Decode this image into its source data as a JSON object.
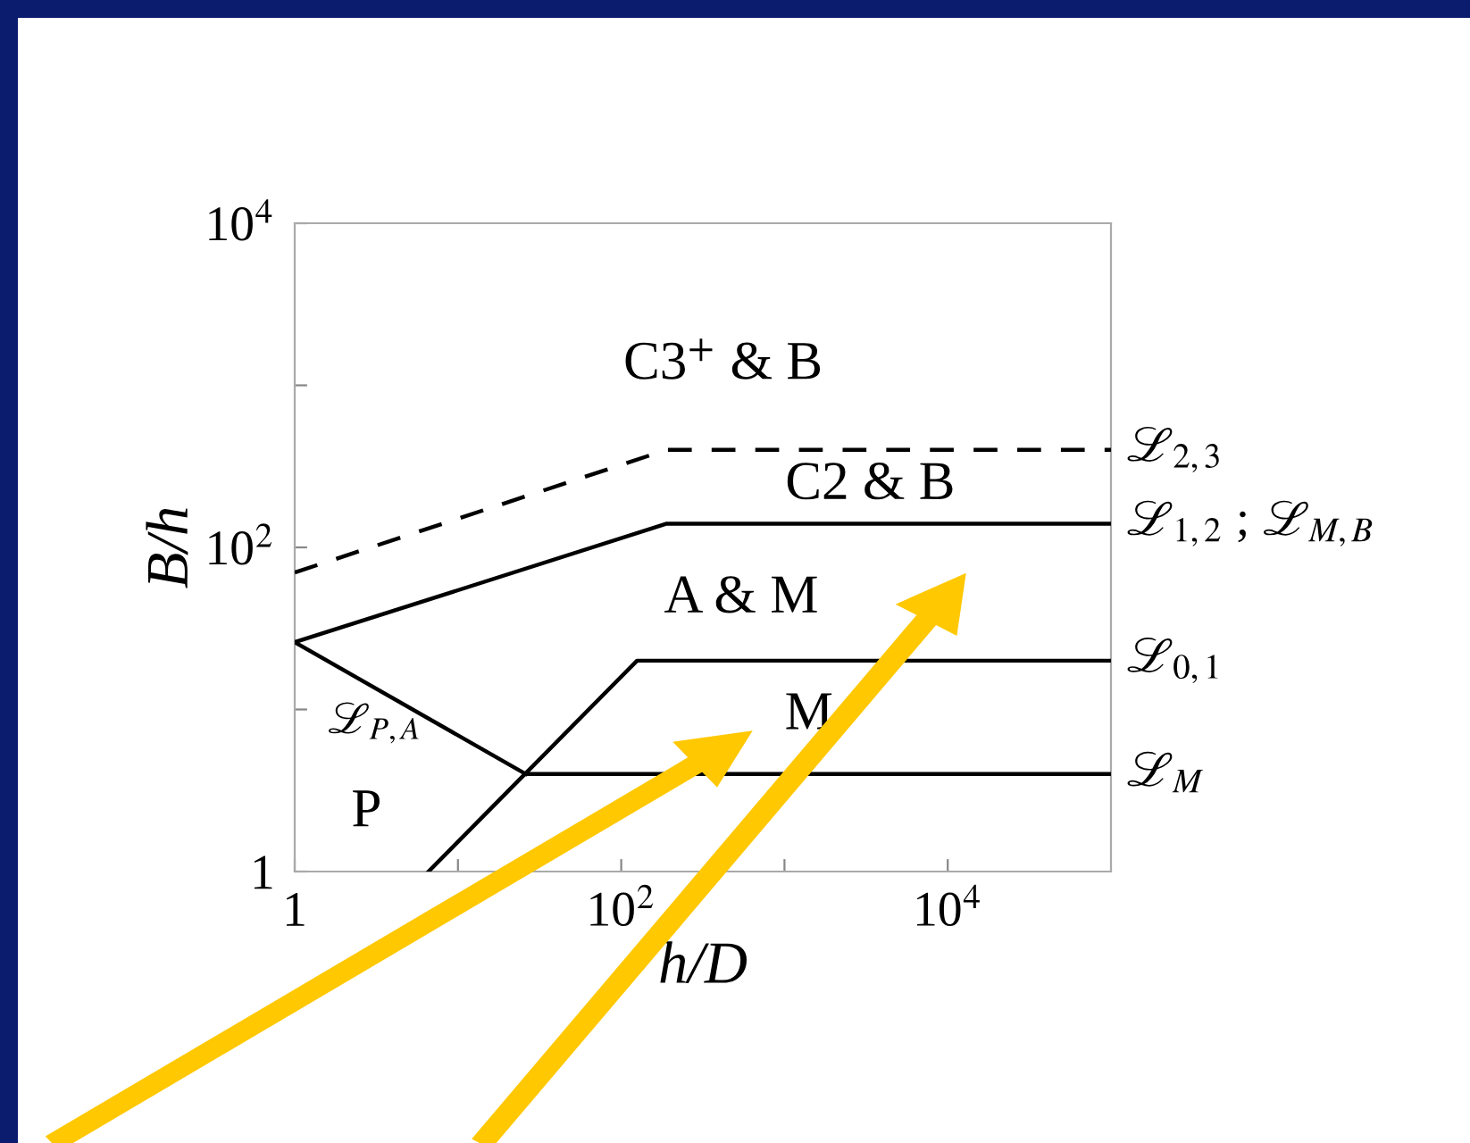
{
  "chart_data": {
    "type": "line",
    "xlabel": "h/D",
    "ylabel": "B/h",
    "log": "xy",
    "xlim": [
      1,
      100000
    ],
    "ylim": [
      1,
      10000
    ],
    "xticks": [
      1,
      {
        "value": 10,
        "label": null
      },
      {
        "value": 100,
        "label": "10$^{2}$"
      },
      {
        "value": 1000,
        "label": null
      },
      {
        "value": 10000,
        "label": "10$^{4}$"
      }
    ],
    "yticks": [
      1,
      {
        "value": 10,
        "label": null
      },
      {
        "value": 100,
        "label": "10$^{2}$"
      },
      {
        "value": 1000,
        "label": null
      },
      {
        "value": 10000,
        "label": "10$^{4}$"
      }
    ],
    "grid": false,
    "legend": false,
    "marker": "none",
    "series": [
      {
        "name": "ℒ$_{2,3}$",
        "color": "#000000",
        "line_style": "dashed",
        "x": [
          1,
          190,
          100000
        ],
        "values": [
          70,
          400,
          400
        ]
      },
      {
        "name": "ℒ$_{1,2}$ ; ℒ$_{M,B}$",
        "color": "#000000",
        "line_style": "solid",
        "x": [
          1,
          190,
          100000
        ],
        "values": [
          26,
          140,
          140
        ]
      },
      {
        "name": "ℒ$_{0,1}$",
        "color": "#000000",
        "line_style": "solid",
        "x": [
          6.6,
          125,
          100000
        ],
        "values": [
          1,
          20,
          20
        ]
      },
      {
        "name": "ℒ$_{M}$",
        "color": "#000000",
        "line_style": "solid",
        "x": [
          26,
          100000
        ],
        "values": [
          4,
          4
        ]
      },
      {
        "color": "#000000",
        "line_style": "solid",
        "x": [
          1,
          26
        ],
        "values": [
          26,
          4
        ]
      }
    ],
    "annotations": [
      "ℒ$_{P,A}$",
      "C3$^{+}$ & B",
      "C2 & B",
      "A & M",
      "M",
      "P"
    ]
  }
}
